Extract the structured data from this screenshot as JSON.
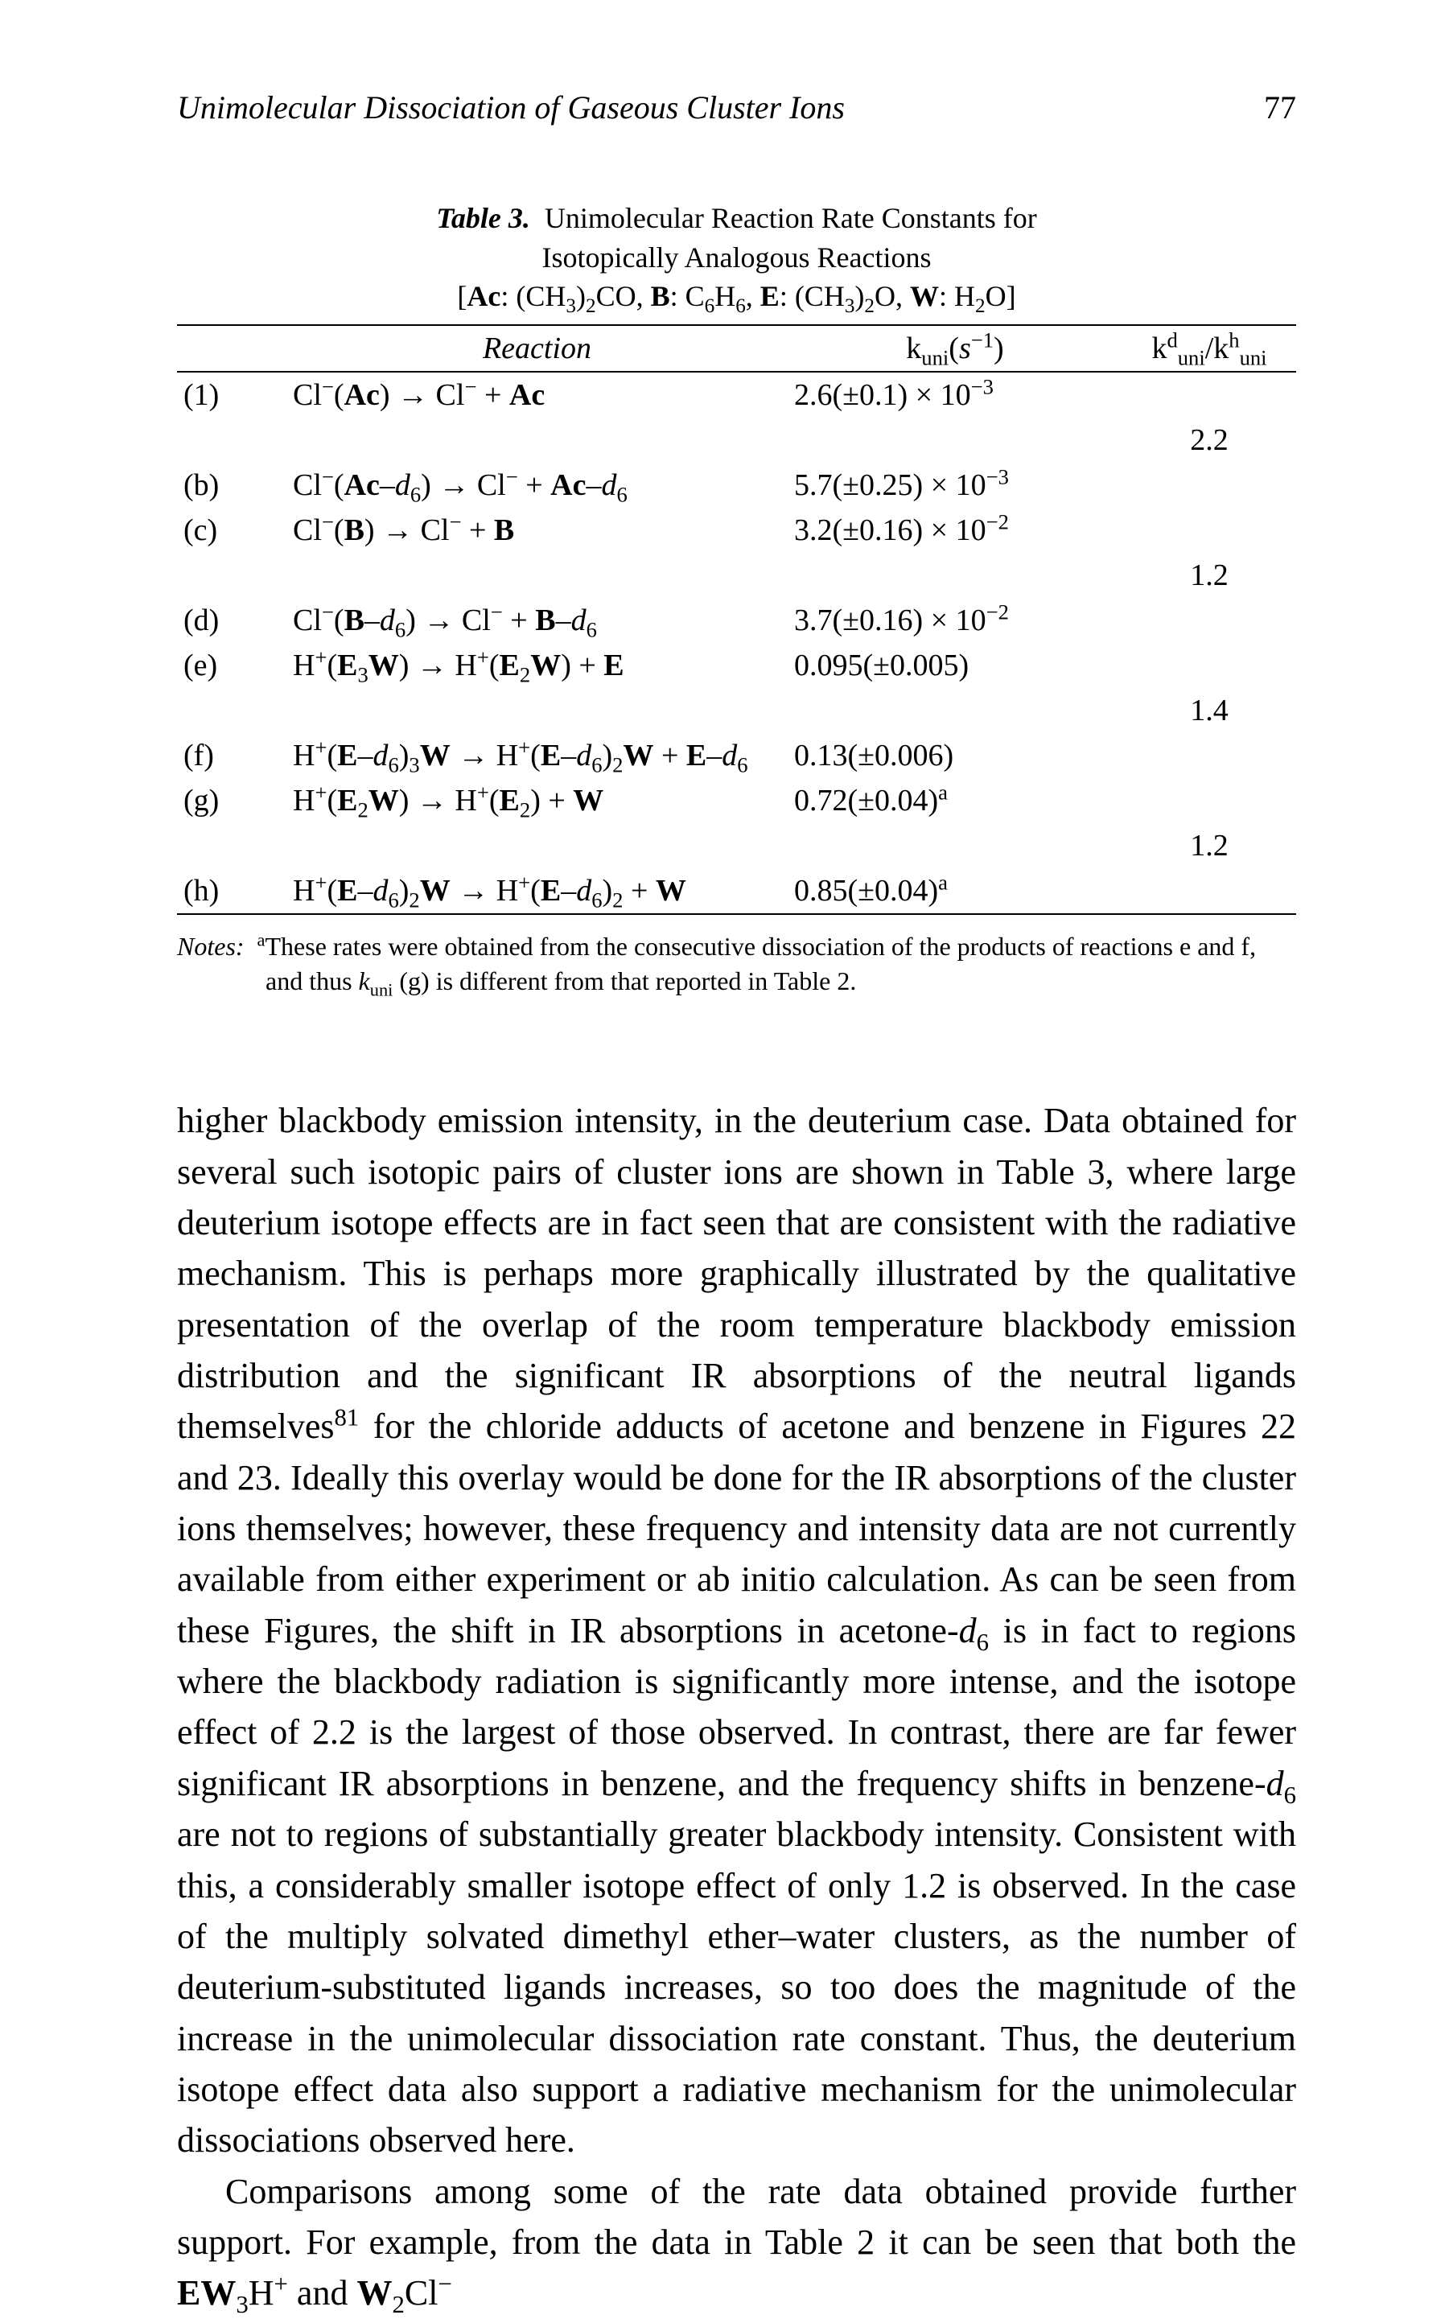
{
  "header": {
    "running_title": "Unimolecular Dissociation of Gaseous Cluster Ions",
    "page_number": "77"
  },
  "table": {
    "label": "Table 3.",
    "title_line1": "Unimolecular Reaction Rate Constants for",
    "title_line2": "Isotopically Analogous Reactions",
    "defs_html": "[<b>Ac</b>: (CH<sub>3</sub>)<sub>2</sub>CO, <b>B</b>: C<sub>6</sub>H<sub>6</sub>, <b>E</b>: (CH<sub>3</sub>)<sub>2</sub>O, <b>W</b>: H<sub>2</sub>O]",
    "head": {
      "reaction": "Reaction",
      "k_html": "k<sub>uni</sub>(<i>s</i><sup>&minus;1</sup>)",
      "ratio_html": "k<sup>d</sup><sub>uni</sub>/k<sup>h</sup><sub>uni</sub>"
    },
    "rows": [
      {
        "idx": "(1)",
        "rxn_html": "Cl<sup>&minus;</sup>(<b>Ac</b>) &rarr; Cl<sup>&minus;</sup> + <b>Ac</b>",
        "k_html": "2.6(&plusmn;0.1) &times; 10<sup>&minus;3</sup>",
        "ratio": ""
      },
      {
        "idx": "",
        "rxn_html": "",
        "k_html": "",
        "ratio": "2.2"
      },
      {
        "idx": "(b)",
        "rxn_html": "Cl<sup>&minus;</sup>(<b>Ac</b>&ndash;<i>d</i><sub>6</sub>) &rarr; Cl<sup>&minus;</sup> + <b>Ac</b>&ndash;<i>d</i><sub>6</sub>",
        "k_html": "5.7(&plusmn;0.25) &times; 10<sup>&minus;3</sup>",
        "ratio": ""
      },
      {
        "idx": "(c)",
        "rxn_html": "Cl<sup>&minus;</sup>(<b>B</b>) &rarr; Cl<sup>&minus;</sup> + <b>B</b>",
        "k_html": "3.2(&plusmn;0.16) &times; 10<sup>&minus;2</sup>",
        "ratio": ""
      },
      {
        "idx": "",
        "rxn_html": "",
        "k_html": "",
        "ratio": "1.2"
      },
      {
        "idx": "(d)",
        "rxn_html": "Cl<sup>&minus;</sup>(<b>B</b>&ndash;<i>d</i><sub>6</sub>) &rarr; Cl<sup>&minus;</sup> + <b>B</b>&ndash;<i>d</i><sub>6</sub>",
        "k_html": "3.7(&plusmn;0.16) &times; 10<sup>&minus;2</sup>",
        "ratio": ""
      },
      {
        "idx": "(e)",
        "rxn_html": "H<sup>+</sup>(<b>E</b><sub>3</sub><b>W</b>) &rarr; H<sup>+</sup>(<b>E</b><sub>2</sub><b>W</b>) + <b>E</b>",
        "k_html": "0.095(&plusmn;0.005)",
        "ratio": ""
      },
      {
        "idx": "",
        "rxn_html": "",
        "k_html": "",
        "ratio": "1.4"
      },
      {
        "idx": "(f)",
        "rxn_html": "H<sup>+</sup>(<b>E</b>&ndash;<i>d</i><sub>6</sub>)<sub>3</sub><b>W</b> &rarr; H<sup>+</sup>(<b>E</b>&ndash;<i>d</i><sub>6</sub>)<sub>2</sub><b>W</b> + <b>E</b>&ndash;<i>d</i><sub>6</sub>",
        "k_html": "0.13(&plusmn;0.006)",
        "ratio": ""
      },
      {
        "idx": "(g)",
        "rxn_html": "H<sup>+</sup>(<b>E</b><sub>2</sub><b>W</b>) &rarr; H<sup>+</sup>(<b>E</b><sub>2</sub>) + <b>W</b>",
        "k_html": "0.72(&plusmn;0.04)<sup>a</sup>",
        "ratio": ""
      },
      {
        "idx": "",
        "rxn_html": "",
        "k_html": "",
        "ratio": "1.2"
      },
      {
        "idx": "(h)",
        "rxn_html": "H<sup>+</sup>(<b>E</b>&ndash;<i>d</i><sub>6</sub>)<sub>2</sub><b>W</b> &rarr; H<sup>+</sup>(<b>E</b>&ndash;<i>d</i><sub>6</sub>)<sub>2</sub> + <b>W</b>",
        "k_html": "0.85(&plusmn;0.04)<sup>a</sup>",
        "ratio": ""
      }
    ],
    "notes_html": "<span class=\"nlabel\">Notes:</span>&nbsp;&nbsp;<sup>a</sup>These rates were obtained from the consecutive dissociation of the products of reactions e and f, and thus <i>k</i><sub>uni</sub> (g) is different from that reported in Table 2."
  },
  "body": {
    "p1_html": "higher blackbody emission intensity, in the deuterium case. Data obtained for several such isotopic pairs of cluster ions are shown in Table 3, where large deuterium isotope effects are in fact seen that are consistent with the radiative mechanism. This is perhaps more graphically illustrated by the qualitative presentation of the overlap of the room temperature blackbody emission distribution and the significant IR absorptions of the neutral ligands themselves<sup>81</sup> for the chloride adducts of acetone and benzene in Figures 22 and 23. Ideally this overlay would be done for the IR absorptions of the cluster ions themselves; however, these frequency and intensity data are not currently available from either experiment or ab initio calculation. As can be seen from these Figures, the shift in IR absorptions in acetone-<i>d</i><sub>6</sub> is in fact to regions where the blackbody radiation is significantly more intense, and the isotope effect of 2.2 is the largest of those observed. In contrast, there are far fewer significant IR absorptions in benzene, and the frequency shifts in benzene-<i>d</i><sub>6</sub> are not to regions of substantially greater blackbody intensity. Consistent with this, a considerably smaller isotope effect of only 1.2 is observed. In the case of the multiply solvated dimethyl ether&ndash;water clusters, as the number of deuterium-substituted ligands increases, so too does the magnitude of the increase in the unimolecular dissociation rate constant. Thus, the deuterium isotope effect data also support a radiative mechanism for the unimolecular dissociations observed here.",
    "p2_html": "Comparisons among some of the rate data obtained provide further support. For example, from the data in Table 2 it can be seen that both the <b>EW</b><sub>3</sub>H<sup>+</sup> and <b>W</b><sub>2</sub>Cl<sup>&minus;</sup>"
  }
}
